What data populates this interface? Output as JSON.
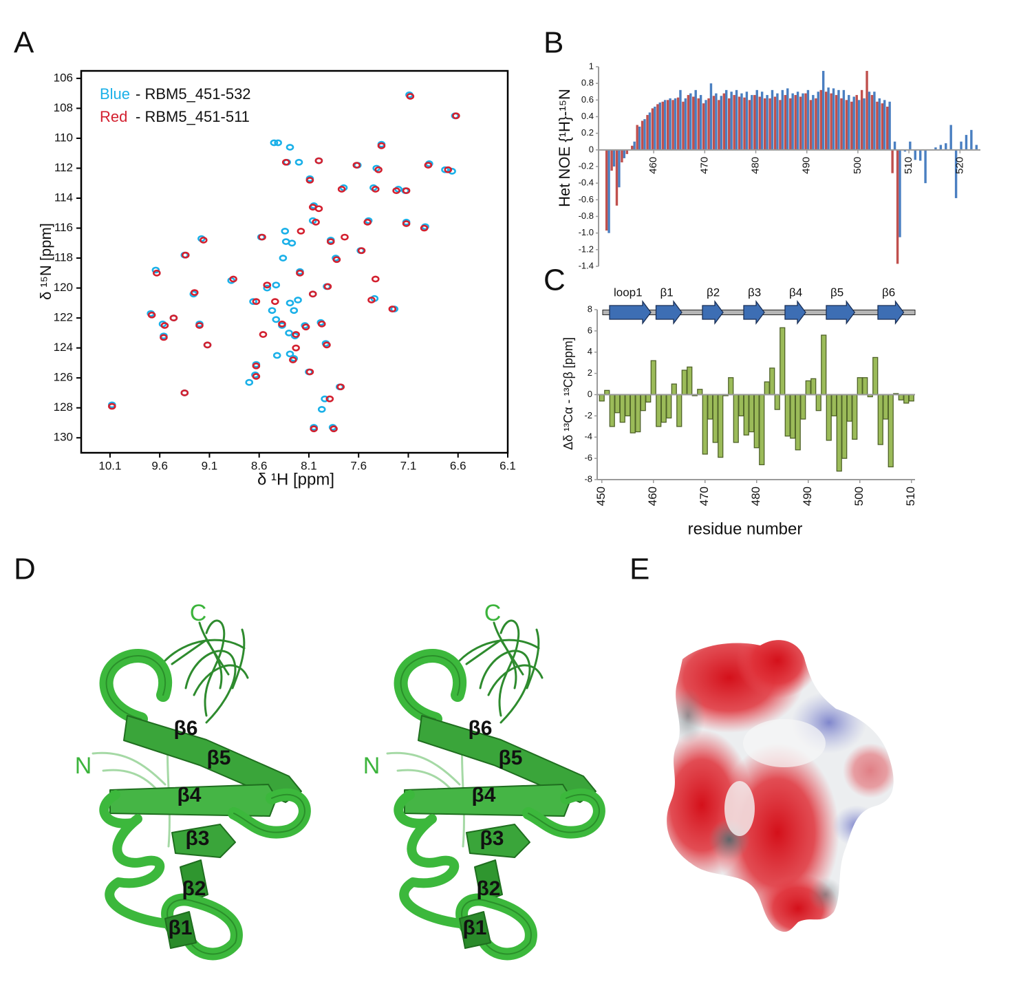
{
  "panel_labels": [
    "A",
    "B",
    "C",
    "D",
    "E"
  ],
  "chart_data": [
    {
      "type": "scatter",
      "xlabel": "δ ¹H [ppm]",
      "ylabel": "δ ¹⁵N [ppm]",
      "xlim": [
        10.39,
        6.1
      ],
      "ylim": [
        131,
        105.5
      ],
      "xticks": [
        10.1,
        9.6,
        9.1,
        8.6,
        8.1,
        7.6,
        7.1,
        6.6,
        6.1
      ],
      "yticks": [
        106,
        108,
        110,
        112,
        114,
        116,
        118,
        120,
        122,
        124,
        126,
        128,
        130
      ],
      "legend": "upper left",
      "series": [
        {
          "name": "Blue",
          "description": "- RBM5_451-532",
          "color": "#1ab0e8",
          "x": [
            7.09,
            6.63,
            7.37,
            8.45,
            8.41,
            8.29,
            8.2,
            8.32,
            8.0,
            7.61,
            7.42,
            6.89,
            6.73,
            6.66,
            7.75,
            7.45,
            7.2,
            7.13,
            8.09,
            8.05,
            8.34,
            8.58,
            8.06,
            7.5,
            7.12,
            6.93,
            9.18,
            9.35,
            8.33,
            8.27,
            7.88,
            7.58,
            8.36,
            7.83,
            8.19,
            8.88,
            9.64,
            9.26,
            8.43,
            8.52,
            7.44,
            7.92,
            8.06,
            8.66,
            8.29,
            8.21,
            8.47,
            8.25,
            7.24,
            9.69,
            9.46,
            9.57,
            9.2,
            8.43,
            8.37,
            8.14,
            7.98,
            9.56,
            9.12,
            8.3,
            8.24,
            7.93,
            8.42,
            8.29,
            8.25,
            8.63,
            8.7,
            8.1,
            8.64,
            9.35,
            7.79,
            7.97,
            7.94,
            10.08,
            8.05,
            7.86
          ],
          "values": [
            107.1,
            108.5,
            110.4,
            110.3,
            110.3,
            110.6,
            111.6,
            111.6,
            111.5,
            111.8,
            112.0,
            111.7,
            112.1,
            112.2,
            113.3,
            113.3,
            113.4,
            113.5,
            112.7,
            114.5,
            116.2,
            116.6,
            115.5,
            115.5,
            115.6,
            115.9,
            116.7,
            117.8,
            116.9,
            117.0,
            116.8,
            117.5,
            118.0,
            118.0,
            118.9,
            119.5,
            118.8,
            120.4,
            119.8,
            120.0,
            120.7,
            119.9,
            120.4,
            120.9,
            121.0,
            120.8,
            121.5,
            121.5,
            121.4,
            121.7,
            122.0,
            122.4,
            122.4,
            122.1,
            122.5,
            122.5,
            122.3,
            123.2,
            123.8,
            123.0,
            123.2,
            123.7,
            124.5,
            124.4,
            124.7,
            125.1,
            126.3,
            125.6,
            125.8,
            127.0,
            126.6,
            128.1,
            127.4,
            127.8,
            129.3,
            129.3
          ]
        },
        {
          "name": "Red",
          "description": "- RBM5_451-511",
          "color": "#d3202f",
          "x": [
            7.08,
            6.62,
            7.37,
            8.33,
            8.0,
            7.62,
            7.4,
            6.9,
            6.7,
            7.77,
            7.43,
            7.22,
            7.12,
            8.09,
            8.06,
            8.0,
            8.57,
            8.18,
            8.03,
            7.51,
            7.12,
            6.94,
            9.16,
            9.34,
            7.88,
            7.74,
            7.57,
            7.82,
            8.19,
            8.86,
            9.25,
            8.52,
            7.43,
            8.06,
            7.91,
            8.63,
            8.44,
            7.47,
            7.26,
            9.68,
            9.46,
            9.2,
            9.55,
            9.56,
            9.12,
            7.97,
            8.13,
            8.37,
            8.56,
            8.23,
            7.92,
            8.23,
            8.26,
            8.63,
            8.09,
            8.63,
            9.35,
            7.78,
            7.89,
            10.08,
            8.05,
            7.85,
            9.63
          ],
          "values": [
            107.2,
            108.5,
            110.5,
            111.6,
            111.5,
            111.8,
            112.1,
            111.8,
            112.1,
            113.4,
            113.4,
            113.5,
            113.5,
            112.8,
            114.6,
            114.7,
            116.6,
            116.2,
            115.6,
            115.6,
            115.7,
            116.0,
            116.8,
            117.8,
            116.9,
            116.6,
            117.5,
            118.1,
            119.0,
            119.4,
            120.3,
            119.8,
            119.4,
            120.4,
            119.9,
            120.9,
            120.9,
            120.8,
            121.4,
            121.8,
            122.0,
            122.5,
            122.5,
            123.3,
            123.8,
            122.4,
            122.6,
            122.4,
            123.1,
            123.1,
            123.8,
            124.0,
            124.8,
            125.2,
            125.6,
            125.9,
            127.0,
            126.6,
            127.4,
            127.9,
            129.4,
            129.4,
            119.0
          ]
        }
      ]
    },
    {
      "type": "bar",
      "ylabel": "Het NOE {¹H}-¹⁵N",
      "x": [
        451,
        452,
        453,
        454,
        455,
        456,
        457,
        458,
        459,
        460,
        461,
        462,
        463,
        464,
        465,
        466,
        467,
        468,
        469,
        470,
        471,
        472,
        473,
        474,
        475,
        476,
        477,
        478,
        479,
        480,
        481,
        482,
        483,
        484,
        485,
        486,
        487,
        488,
        489,
        490,
        491,
        492,
        493,
        494,
        495,
        496,
        497,
        498,
        499,
        500,
        501,
        502,
        503,
        504,
        505,
        506,
        507,
        508,
        509,
        510,
        511,
        512,
        513,
        514,
        515,
        516,
        517,
        518,
        519,
        520,
        521,
        522,
        523
      ],
      "xlim": [
        449.2,
        524
      ],
      "ylim": [
        -1.4,
        1
      ],
      "xticks": [
        460,
        470,
        480,
        490,
        500,
        510,
        520
      ],
      "yticks": [
        1,
        0.8,
        0.6,
        0.4,
        0.2,
        0,
        -0.2,
        -0.4,
        -0.6,
        -0.8,
        {
          "value": -1,
          "label": "-1.0"
        },
        -1.2,
        -1.4
      ],
      "series": [
        {
          "color": "#4a7fc1",
          "values": [
            -1.0,
            -0.2,
            -0.45,
            -0.1,
            0.0,
            0.1,
            0.28,
            0.37,
            0.45,
            0.52,
            0.57,
            0.6,
            0.62,
            0.62,
            0.72,
            0.62,
            0.68,
            0.72,
            0.66,
            0.6,
            0.8,
            0.68,
            0.65,
            0.72,
            0.7,
            0.72,
            0.68,
            0.7,
            0.66,
            0.72,
            0.7,
            0.66,
            0.72,
            0.68,
            0.72,
            0.74,
            0.68,
            0.7,
            0.68,
            0.72,
            0.66,
            0.7,
            0.95,
            0.75,
            0.74,
            0.72,
            0.72,
            0.66,
            0.64,
            0.6,
            0.62,
            0.7,
            0.7,
            0.62,
            0.6,
            0.58,
            0.1,
            -1.05,
            -0.02,
            0.1,
            -0.12,
            -0.13,
            -0.4,
            0,
            0.03,
            0.06,
            0.08,
            0.3,
            -0.58,
            0.1,
            0.18,
            0.24,
            0.06
          ]
        },
        {
          "color": "#c0504d",
          "values": [
            -0.97,
            -0.25,
            -0.67,
            -0.15,
            -0.05,
            0.05,
            0.3,
            0.35,
            0.42,
            0.5,
            0.55,
            0.58,
            0.6,
            0.6,
            0.63,
            0.58,
            0.66,
            0.64,
            0.62,
            0.56,
            0.62,
            0.65,
            0.6,
            0.68,
            0.62,
            0.66,
            0.64,
            0.63,
            0.6,
            0.66,
            0.64,
            0.62,
            0.62,
            0.64,
            0.6,
            0.66,
            0.62,
            0.66,
            0.64,
            0.68,
            0.6,
            0.62,
            0.72,
            0.7,
            0.68,
            0.66,
            0.62,
            0.6,
            0.58,
            0.66,
            0.72,
            0.95,
            0.66,
            0.58,
            0.56,
            0.52,
            -0.28,
            -1.37,
            null,
            null,
            null,
            null,
            null,
            null,
            null,
            null,
            null,
            null,
            null,
            null,
            null,
            null,
            null
          ]
        }
      ]
    },
    {
      "type": "bar",
      "xlabel": "residue number",
      "ylabel": "Δδ ¹³Cα - ¹³Cβ [ppm]",
      "x": [
        450,
        451,
        452,
        453,
        454,
        455,
        456,
        457,
        458,
        459,
        460,
        461,
        462,
        463,
        464,
        465,
        466,
        467,
        468,
        469,
        470,
        471,
        472,
        473,
        474,
        475,
        476,
        477,
        478,
        479,
        480,
        481,
        482,
        483,
        484,
        485,
        486,
        487,
        488,
        489,
        490,
        491,
        492,
        493,
        494,
        495,
        496,
        497,
        498,
        499,
        500,
        501,
        502,
        503,
        504,
        505,
        506,
        507,
        508,
        509,
        510
      ],
      "xlim": [
        449.1,
        510.7
      ],
      "ylim": [
        -8,
        8
      ],
      "xticks": [
        450,
        460,
        470,
        480,
        490,
        500,
        510
      ],
      "yticks": [
        8,
        6,
        4,
        2,
        0,
        -2,
        -4,
        -6,
        -8
      ],
      "series": [
        {
          "color": "#9bbb59",
          "edgecolor": "#4f6228",
          "values": [
            -0.6,
            0.4,
            -3.0,
            -1.7,
            -2.6,
            -2.0,
            -3.6,
            -3.5,
            -1.5,
            -0.7,
            3.2,
            -3.0,
            -2.6,
            -2.2,
            1.0,
            -3.0,
            2.3,
            2.6,
            -0.1,
            0.5,
            -5.6,
            -2.3,
            -4.5,
            -5.9,
            -0.1,
            1.6,
            -4.5,
            -2.0,
            -3.8,
            -3.5,
            -5.0,
            -6.6,
            1.2,
            2.5,
            -1.4,
            6.3,
            -3.9,
            -4.1,
            -5.2,
            -2.3,
            1.3,
            1.5,
            -1.5,
            5.6,
            -4.3,
            -2.0,
            -7.2,
            -6.0,
            -2.5,
            -4.2,
            1.6,
            1.6,
            -0.2,
            3.5,
            -4.7,
            -2.3,
            -6.8,
            0.1,
            -0.5,
            -0.8,
            -0.6
          ]
        }
      ],
      "secondary_structure": {
        "color": "#3d6eb4",
        "elements": [
          {
            "label": "loop1",
            "start": 451.5,
            "end": 459.5
          },
          {
            "label": "β1",
            "start": 460.5,
            "end": 465.5
          },
          {
            "label": "β2",
            "start": 469.5,
            "end": 473.5
          },
          {
            "label": "β3",
            "start": 477.5,
            "end": 481.5
          },
          {
            "label": "β4",
            "start": 485.5,
            "end": 489.5
          },
          {
            "label": "β5",
            "start": 493.5,
            "end": 499
          },
          {
            "label": "β6",
            "start": 503.5,
            "end": 508.5
          }
        ]
      }
    }
  ],
  "panel_d": {
    "views": [
      {
        "terminus_labels": [
          "C",
          "N"
        ],
        "strand_labels": [
          "β6",
          "β5",
          "β4",
          "β3",
          "β2",
          "β1"
        ]
      },
      {
        "terminus_labels": [
          "C",
          "N"
        ],
        "strand_labels": [
          "β6",
          "β5",
          "β4",
          "β3",
          "β2",
          "β1"
        ]
      }
    ]
  }
}
